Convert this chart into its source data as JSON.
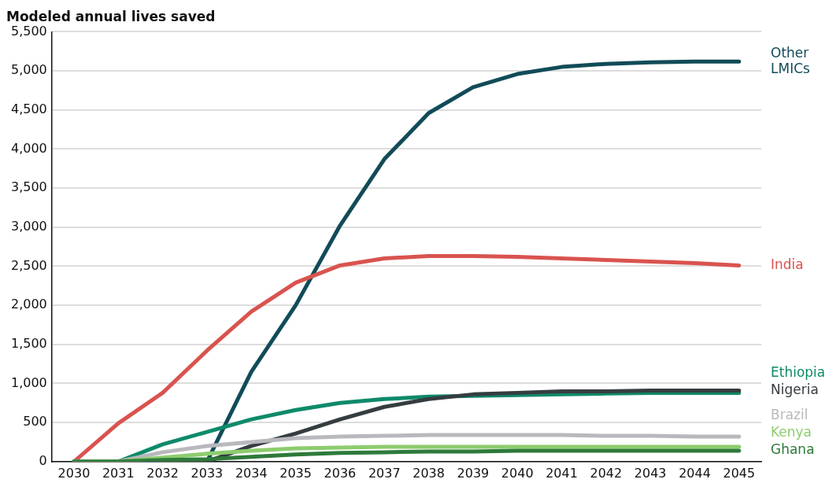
{
  "chart_data": {
    "type": "line",
    "title": "Modeled annual lives saved",
    "categories": [
      "2030",
      "2031",
      "2032",
      "2033",
      "2034",
      "2035",
      "2036",
      "2037",
      "2038",
      "2039",
      "2040",
      "2041",
      "2042",
      "2043",
      "2044",
      "2045"
    ],
    "series": [
      {
        "name": "Ghana",
        "color": "#2e7a3a",
        "values": [
          0,
          0,
          20,
          30,
          60,
          90,
          110,
          120,
          130,
          130,
          140,
          140,
          140,
          140,
          140,
          140
        ]
      },
      {
        "name": "Kenya",
        "color": "#8dcc6e",
        "values": [
          0,
          0,
          50,
          100,
          140,
          170,
          180,
          190,
          190,
          190,
          190,
          190,
          190,
          190,
          190,
          190
        ]
      },
      {
        "name": "Brazil",
        "color": "#b8b8bd",
        "values": [
          0,
          0,
          120,
          200,
          250,
          300,
          320,
          330,
          340,
          340,
          340,
          340,
          330,
          330,
          320,
          320
        ]
      },
      {
        "name": "Nigeria",
        "color": "#353d40",
        "values": [
          0,
          0,
          0,
          0,
          200,
          360,
          540,
          700,
          800,
          860,
          880,
          900,
          900,
          910,
          910,
          910
        ]
      },
      {
        "name": "Ethiopia",
        "color": "#0e8a6a",
        "values": [
          0,
          0,
          220,
          380,
          540,
          660,
          750,
          800,
          830,
          840,
          850,
          860,
          870,
          880,
          880,
          880
        ]
      },
      {
        "name": "India",
        "color": "#d9534f",
        "values": [
          0,
          490,
          880,
          1420,
          1920,
          2290,
          2510,
          2600,
          2630,
          2630,
          2620,
          2600,
          2580,
          2560,
          2540,
          2510
        ]
      },
      {
        "name": "Other LMICs",
        "color": "#124b58",
        "values": [
          0,
          0,
          0,
          0,
          1150,
          2000,
          3020,
          3870,
          4460,
          4790,
          4960,
          5050,
          5090,
          5110,
          5120,
          5120
        ]
      }
    ],
    "ylim": [
      0,
      5500
    ],
    "yticks": [
      0,
      500,
      {
        "value": 1000,
        "label": "1,000"
      },
      {
        "value": 1500,
        "label": "1,500"
      },
      {
        "value": 2000,
        "label": "2,000"
      },
      {
        "value": 2500,
        "label": "2,500"
      },
      {
        "value": 3000,
        "label": "3,000"
      },
      {
        "value": 3500,
        "label": "3,500"
      },
      {
        "value": 4000,
        "label": "4,000"
      },
      {
        "value": 4500,
        "label": "4,500"
      },
      {
        "value": 5000,
        "label": "5,000"
      },
      {
        "value": 5500,
        "label": "5,500"
      }
    ],
    "grid": "y",
    "legend": false,
    "marker": "none",
    "line_style": "solid"
  }
}
